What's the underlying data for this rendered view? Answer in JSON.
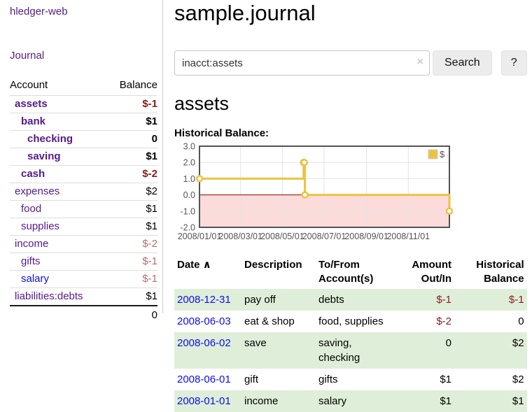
{
  "app": {
    "title": "hledger-web",
    "nav_journal": "Journal"
  },
  "colors": {
    "link-purple": "#551a8b",
    "link-blue": "#0d0dee",
    "neg-strong": "#871c1c",
    "neg-muted": "#b56e6e",
    "stripe-green": "#dfeed8",
    "btn-gray": "#ececec"
  },
  "sidebar": {
    "accounts_header": {
      "account": "Account",
      "balance": "Balance"
    },
    "accounts": [
      {
        "name": "assets",
        "level": 1,
        "bold": true,
        "balance": "$-1",
        "negative": true,
        "muted": false,
        "blue": false
      },
      {
        "name": "bank",
        "level": 2,
        "bold": true,
        "balance": "$1",
        "negative": false,
        "muted": false,
        "blue": false
      },
      {
        "name": "checking",
        "level": 3,
        "bold": true,
        "balance": "0",
        "negative": false,
        "muted": false,
        "blue": false
      },
      {
        "name": "saving",
        "level": 3,
        "bold": true,
        "balance": "$1",
        "negative": false,
        "muted": false,
        "blue": false
      },
      {
        "name": "cash",
        "level": 2,
        "bold": true,
        "balance": "$-2",
        "negative": true,
        "muted": false,
        "blue": false
      },
      {
        "name": "expenses",
        "level": 1,
        "bold": false,
        "balance": "$2",
        "negative": false,
        "muted": false,
        "blue": false
      },
      {
        "name": "food",
        "level": 2,
        "bold": false,
        "balance": "$1",
        "negative": false,
        "muted": false,
        "blue": false
      },
      {
        "name": "supplies",
        "level": 2,
        "bold": false,
        "balance": "$1",
        "negative": false,
        "muted": false,
        "blue": false
      },
      {
        "name": "income",
        "level": 1,
        "bold": false,
        "balance": "$-2",
        "negative": true,
        "muted": true,
        "blue": false
      },
      {
        "name": "gifts",
        "level": 2,
        "bold": false,
        "balance": "$-1",
        "negative": true,
        "muted": true,
        "blue": false
      },
      {
        "name": "salary",
        "level": 2,
        "bold": false,
        "balance": "$-1",
        "negative": true,
        "muted": true,
        "blue": true
      },
      {
        "name": "liabilities:debts",
        "level": 1,
        "bold": false,
        "balance": "$1",
        "negative": false,
        "muted": false,
        "blue": false
      }
    ],
    "total": "0"
  },
  "header": {
    "title": "sample.journal"
  },
  "search": {
    "value": "inacct:assets",
    "clear_icon": "×",
    "button": "Search",
    "help_button": "?"
  },
  "account_page": {
    "title": "assets",
    "chart_label": "Historical Balance:"
  },
  "chart_data": {
    "type": "line",
    "step": true,
    "title": "Historical Balance:",
    "series": [
      {
        "name": "$",
        "color": "#edc240",
        "points": [
          [
            "2008-01-01",
            1
          ],
          [
            "2008-06-01",
            2
          ],
          [
            "2008-06-02",
            2
          ],
          [
            "2008-06-03",
            0
          ],
          [
            "2008-12-31",
            -1
          ]
        ]
      }
    ],
    "xlim": [
      "2008-01-01",
      "2008-12-31"
    ],
    "ylim": [
      -2,
      3
    ],
    "yticks": [
      {
        "label": "3.0",
        "value": 3
      },
      {
        "label": "2.0",
        "value": 2
      },
      {
        "label": "1.0",
        "value": 1
      },
      {
        "label": "0.0",
        "value": 0
      },
      {
        "label": "-1.0",
        "value": -1
      },
      {
        "label": "-2.0",
        "value": -2
      }
    ],
    "xticks": [
      {
        "label": "2008/01/01",
        "date": "2008-01-01"
      },
      {
        "label": "2008/03/01",
        "date": "2008-03-01"
      },
      {
        "label": "2008/05/01",
        "date": "2008-05-01"
      },
      {
        "label": "2008/07/01",
        "date": "2008-07-01"
      },
      {
        "label": "2008/09/01",
        "date": "2008-09-01"
      },
      {
        "label": "2008/11/01",
        "date": "2008-11-01"
      }
    ],
    "legend_position": "top-right",
    "grid": true,
    "negative_region_fill": "#fcdbdb",
    "zero_line_color": "#8b0000",
    "grid_color": "#e3e3e3",
    "border_color": "#545454",
    "tick_label_color": "#545454"
  },
  "register": {
    "columns": [
      {
        "label": "Date",
        "sort": "∧"
      },
      {
        "label": "Description"
      },
      {
        "label": "To/From Account(s)"
      },
      {
        "label": "Amount Out/In",
        "align": "right"
      },
      {
        "label": "Historical Balance",
        "align": "right"
      }
    ],
    "rows": [
      {
        "date": "2008-12-31",
        "description": "pay off",
        "accounts": "debts",
        "amount": "$-1",
        "balance": "$-1"
      },
      {
        "date": "2008-06-03",
        "description": "eat & shop",
        "accounts": "food, supplies",
        "amount": "$-2",
        "balance": "0"
      },
      {
        "date": "2008-06-02",
        "description": "save",
        "accounts": "saving, checking",
        "amount": "0",
        "balance": "$2"
      },
      {
        "date": "2008-06-01",
        "description": "gift",
        "accounts": "gifts",
        "amount": "$1",
        "balance": "$2"
      },
      {
        "date": "2008-01-01",
        "description": "income",
        "accounts": "salary",
        "amount": "$1",
        "balance": "$1"
      }
    ]
  }
}
